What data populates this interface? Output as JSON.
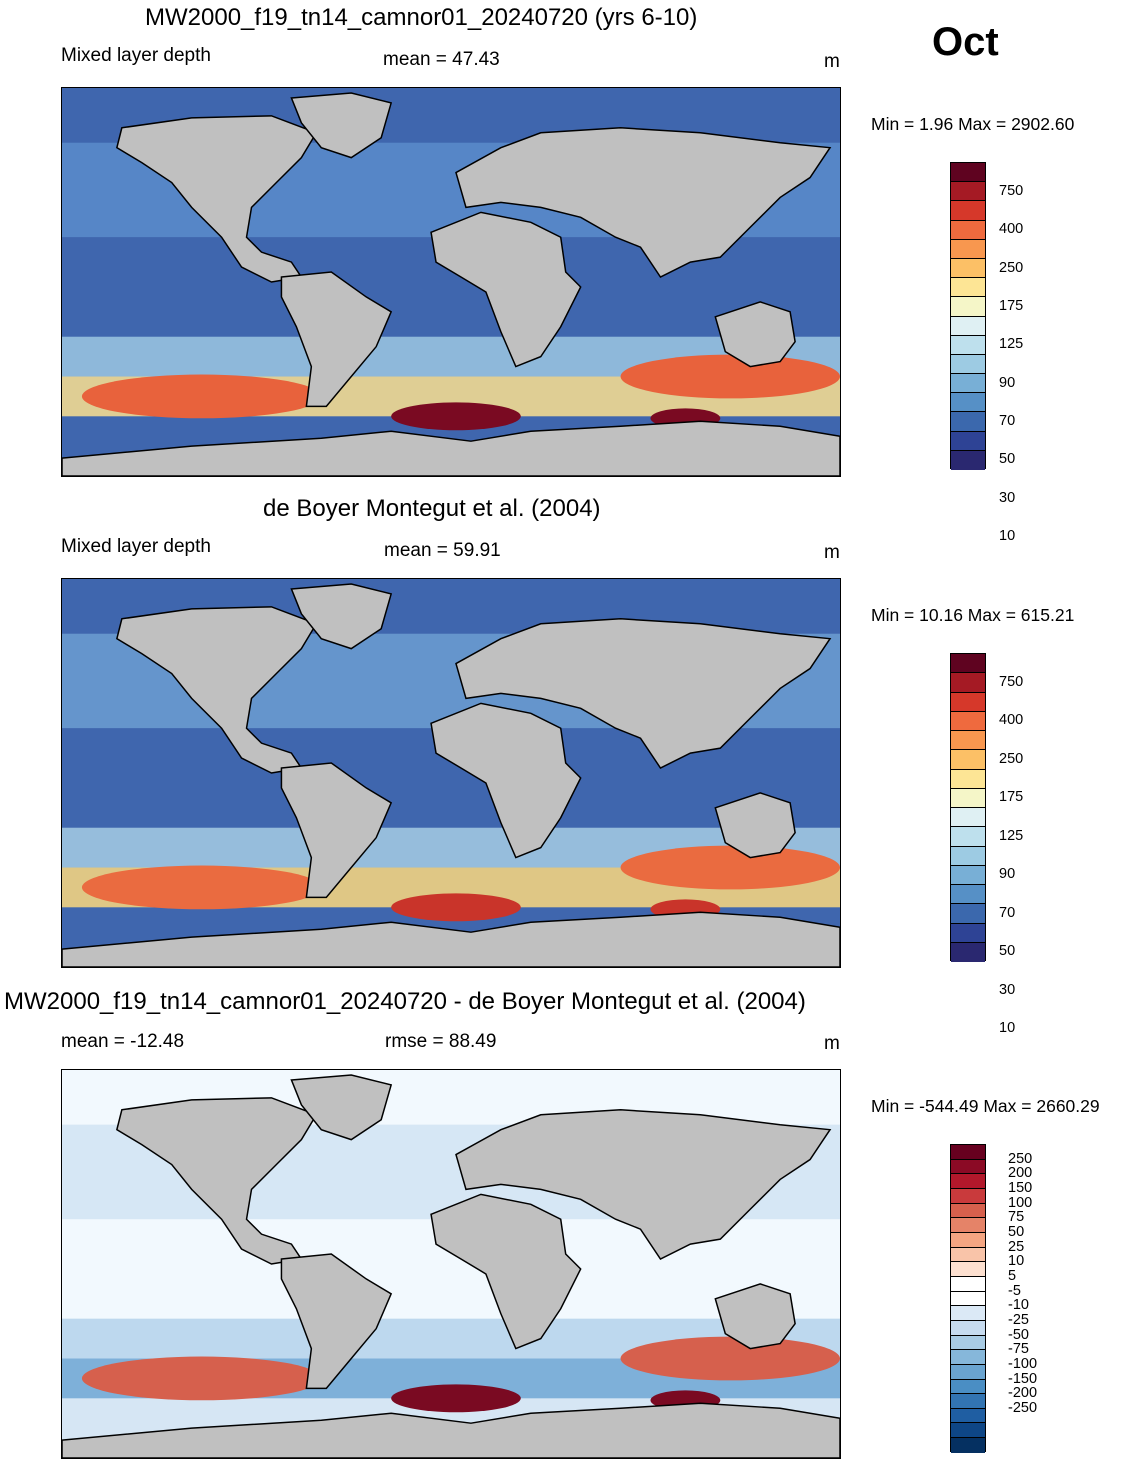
{
  "month": "Oct",
  "panels": [
    {
      "title": "MW2000_f19_tn14_camnor01_20240720 (yrs 6-10)",
      "left": "Mixed layer depth",
      "center": "mean =  47.43",
      "units": "m",
      "minmax": "Min =   1.96 Max = 2902.60",
      "colorbar": {
        "labels": [
          "750",
          "400",
          "250",
          "175",
          "125",
          "90",
          "70",
          "50",
          "30",
          "10"
        ],
        "colors": [
          "#5f0320",
          "#a51a24",
          "#d6382a",
          "#ef6a3e",
          "#f8974f",
          "#fcc066",
          "#fde595",
          "#f5f6c8",
          "#dff0f3",
          "#bee0ed",
          "#9dcbe3",
          "#78afd6",
          "#5690c6",
          "#3b68ad",
          "#2e4395",
          "#2a2870"
        ]
      }
    },
    {
      "title": "de Boyer Montegut et al. (2004)",
      "left": "Mixed layer depth",
      "center": "mean =  59.91",
      "units": "m",
      "minmax": "Min =  10.16 Max = 615.21",
      "colorbar": {
        "labels": [
          "750",
          "400",
          "250",
          "175",
          "125",
          "90",
          "70",
          "50",
          "30",
          "10"
        ],
        "colors": [
          "#5f0320",
          "#a51a24",
          "#d6382a",
          "#ef6a3e",
          "#f8974f",
          "#fcc066",
          "#fde595",
          "#f5f6c8",
          "#dff0f3",
          "#bee0ed",
          "#9dcbe3",
          "#78afd6",
          "#5690c6",
          "#3b68ad",
          "#2e4395",
          "#2a2870"
        ]
      }
    },
    {
      "title": "MW2000_f19_tn14_camnor01_20240720 - de Boyer Montegut et al. (2004)",
      "left": "mean = -12.48",
      "center": "rmse =  88.49",
      "units": "m",
      "minmax": "Min = -544.49 Max = 2660.29",
      "colorbar": {
        "labels": [
          "250",
          "200",
          "150",
          "100",
          "75",
          "50",
          "25",
          "10",
          "5",
          "-5",
          "-10",
          "-25",
          "-50",
          "-75",
          "-100",
          "-150",
          "-200",
          "-250"
        ],
        "colors": [
          "#67001f",
          "#8b0a25",
          "#b2182b",
          "#c93a3c",
          "#d6604d",
          "#e58368",
          "#f4a582",
          "#f9c4a9",
          "#fde0d0",
          "#ffffff",
          "#ffffff",
          "#dbe9f6",
          "#c6dbef",
          "#a8cbe4",
          "#86b7da",
          "#6aa4d0",
          "#4a8ec4",
          "#3274b2",
          "#1f5ea2",
          "#0e4686",
          "#053061"
        ]
      }
    }
  ]
}
